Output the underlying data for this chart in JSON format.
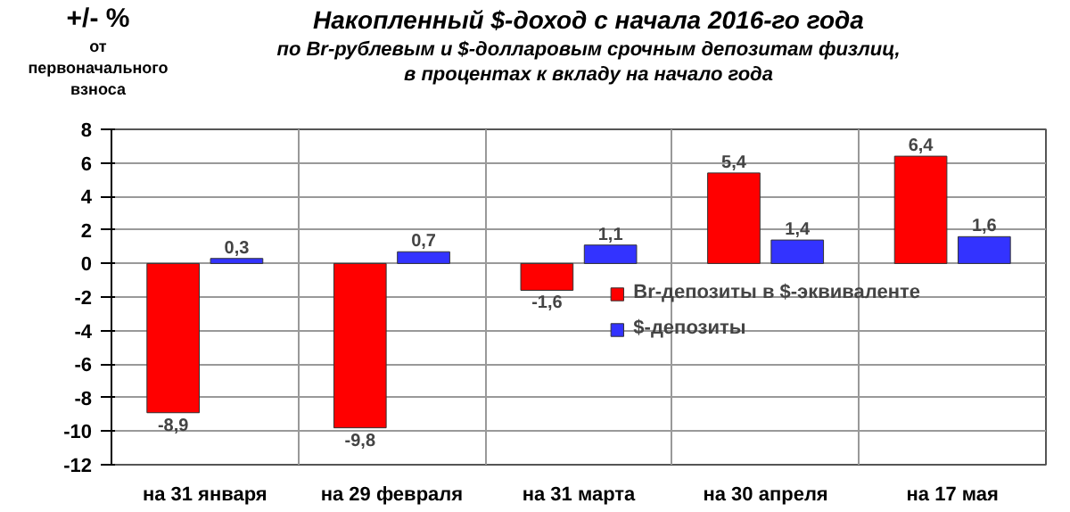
{
  "chart_data": {
    "type": "bar",
    "title": "Накопленный $-доход с начала 2016-го года",
    "subtitle": "по Br-рублевым и $-долларовым срочным депозитам физлиц,\nв процентах к вкладу на начало года",
    "ylabel": "+/- %",
    "annotations": [
      "от первоначального взноса"
    ],
    "categories": [
      "на 31 января",
      "на 29 февраля",
      "на 31 марта",
      "на 30 апреля",
      "на 17 мая"
    ],
    "series": [
      {
        "name": "Br-депозиты в $-эквиваленте",
        "color": "#ff0000",
        "values": [
          -8.9,
          -9.8,
          -1.6,
          5.4,
          6.4
        ],
        "value_labels": [
          "-8,9",
          "-9,8",
          "-1,6",
          "5,4",
          "6,4"
        ]
      },
      {
        "name": "$-депозиты",
        "color": "#3333ff",
        "values": [
          0.3,
          0.7,
          1.1,
          1.4,
          1.6
        ],
        "value_labels": [
          "0,3",
          "0,7",
          "1,1",
          "1,4",
          "1,6"
        ]
      }
    ],
    "ylim": [
      -12,
      8
    ],
    "yticks": [
      -12,
      -10,
      -8,
      -6,
      -4,
      -2,
      0,
      2,
      4,
      6,
      8
    ],
    "grid": true,
    "legend": "right"
  }
}
